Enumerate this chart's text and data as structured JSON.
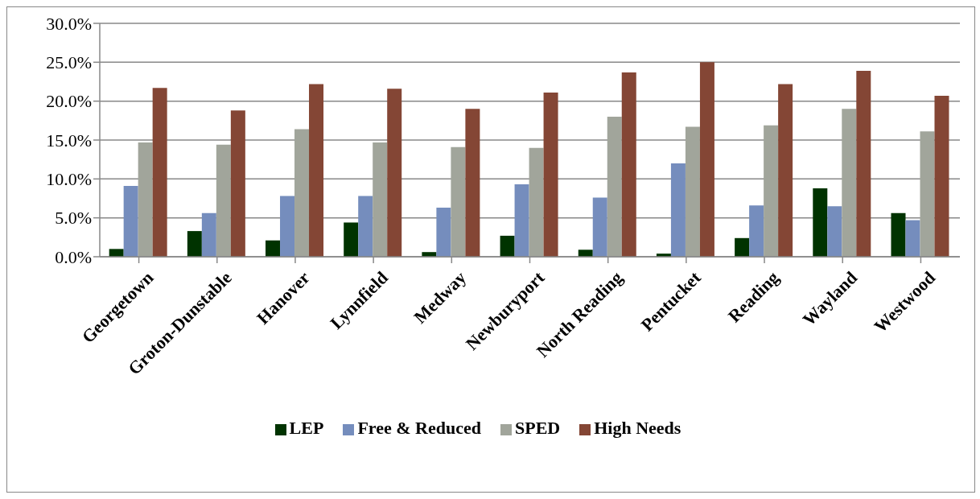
{
  "chart_data": {
    "type": "bar",
    "categories": [
      "Georgetown",
      "Groton-Dunstable",
      "Hanover",
      "Lynnfield",
      "Medway",
      "Newburyport",
      "North Reading",
      "Pentucket",
      "Reading",
      "Wayland",
      "Westwood"
    ],
    "series": [
      {
        "name": "LEP",
        "color": "#003300",
        "values": [
          1.0,
          3.3,
          2.1,
          4.4,
          0.6,
          2.7,
          0.9,
          0.4,
          2.4,
          8.8,
          5.6
        ]
      },
      {
        "name": "Free & Reduced",
        "color": "#758dbd",
        "values": [
          9.1,
          5.6,
          7.8,
          7.8,
          6.3,
          9.3,
          7.6,
          12.0,
          6.6,
          6.5,
          4.7
        ]
      },
      {
        "name": "SPED",
        "color": "#a1a59b",
        "values": [
          14.7,
          14.4,
          16.4,
          14.7,
          14.1,
          14.0,
          18.0,
          16.7,
          16.9,
          19.0,
          16.1
        ]
      },
      {
        "name": "High Needs",
        "color": "#844635",
        "values": [
          21.7,
          18.8,
          22.2,
          21.6,
          19.0,
          21.1,
          23.7,
          25.0,
          22.2,
          23.9,
          20.7
        ]
      }
    ],
    "ylim": [
      0,
      30
    ],
    "yticks": [
      {
        "value": 0,
        "label": "0.0%"
      },
      {
        "value": 5,
        "label": "5.0%"
      },
      {
        "value": 10,
        "label": "10.0%"
      },
      {
        "value": 15,
        "label": "15.0%"
      },
      {
        "value": 20,
        "label": "20.0%"
      },
      {
        "value": 25,
        "label": "25.0%"
      },
      {
        "value": 30,
        "label": "30.0%"
      }
    ],
    "grid": "y",
    "legend": "bottom"
  }
}
